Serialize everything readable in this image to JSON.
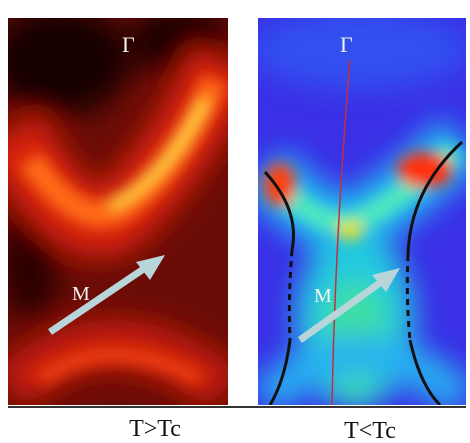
{
  "panels": [
    {
      "gamma": "Γ",
      "m": "M",
      "caption": "T>Tc"
    },
    {
      "gamma": "Γ",
      "m": "M",
      "caption": "T<Tc"
    }
  ]
}
